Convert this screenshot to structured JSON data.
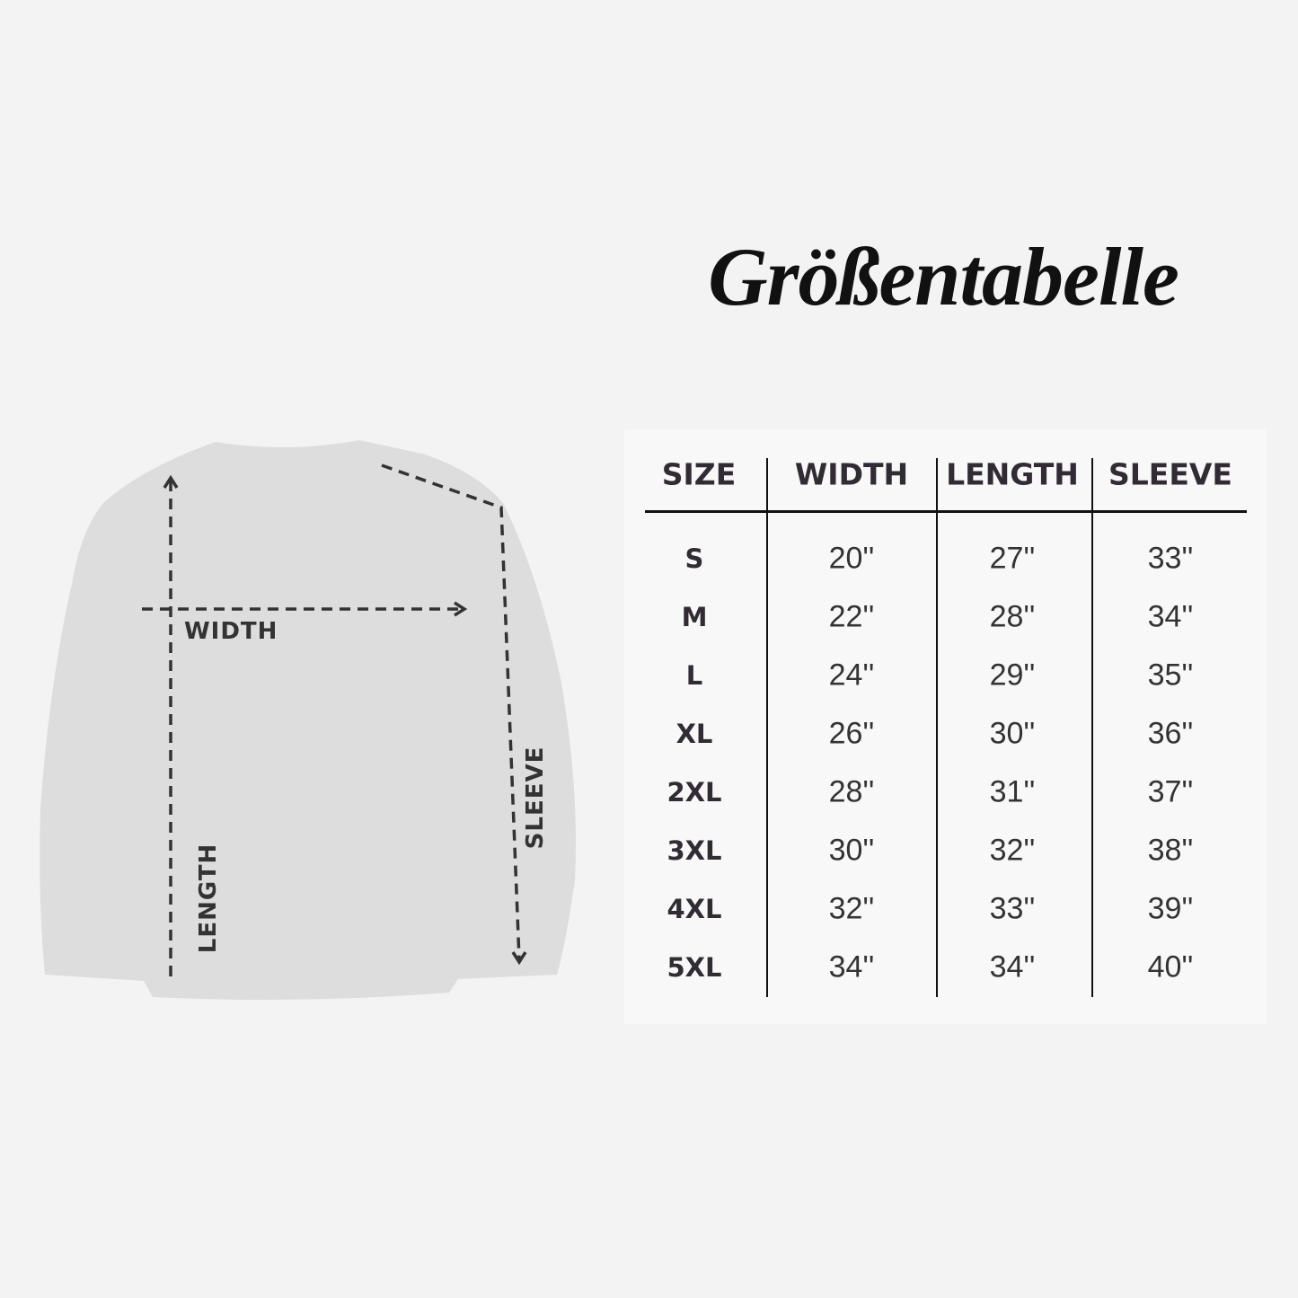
{
  "title": "Größentabelle",
  "diagram": {
    "labels": {
      "width": "WIDTH",
      "length": "LENGTH",
      "sleeve": "SLEEVE"
    },
    "garment_color": "#dcdcdc"
  },
  "table": {
    "headers": [
      "SIZE",
      "WIDTH",
      "LENGTH",
      "SLEEVE"
    ],
    "rows": [
      [
        "S",
        "20''",
        "27''",
        "33''"
      ],
      [
        "M",
        "22''",
        "28''",
        "34''"
      ],
      [
        "L",
        "24''",
        "29''",
        "35''"
      ],
      [
        "XL",
        "26''",
        "30''",
        "36''"
      ],
      [
        "2XL",
        "28''",
        "31''",
        "37''"
      ],
      [
        "3XL",
        "30''",
        "32''",
        "38''"
      ],
      [
        "4XL",
        "32''",
        "33''",
        "39''"
      ],
      [
        "5XL",
        "34''",
        "34''",
        "40''"
      ]
    ]
  }
}
